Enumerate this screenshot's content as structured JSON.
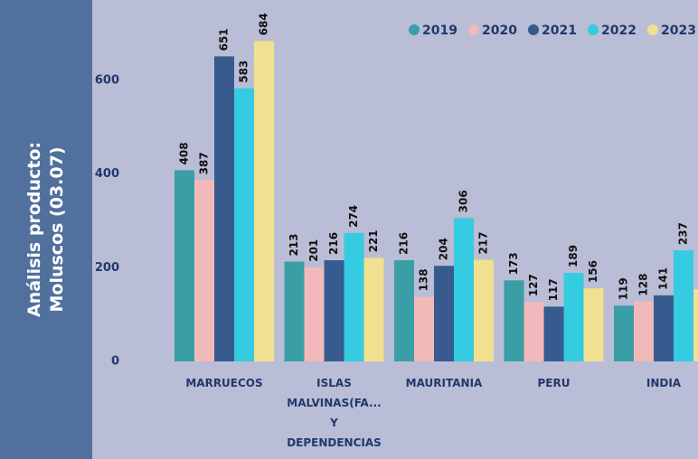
{
  "sidebar_title": "Análisis producto:\nMoluscos (03.07)",
  "chart_data": {
    "type": "bar",
    "categories": [
      "MARRUECOS",
      "ISLAS\nMALVINAS(FA...\nY\nDEPENDENCIAS",
      "MAURITANIA",
      "PERU",
      "INDIA"
    ],
    "series": [
      {
        "name": "2019",
        "color": "#3a9ea6",
        "values": [
          408,
          213,
          216,
          173,
          119
        ]
      },
      {
        "name": "2020",
        "color": "#f2b9bb",
        "values": [
          387,
          201,
          138,
          127,
          128
        ]
      },
      {
        "name": "2021",
        "color": "#375b8e",
        "values": [
          651,
          216,
          204,
          117,
          141
        ]
      },
      {
        "name": "2022",
        "color": "#35cbe0",
        "values": [
          583,
          274,
          306,
          189,
          237
        ]
      },
      {
        "name": "2023",
        "color": "#f1e08f",
        "values": [
          684,
          221,
          217,
          156,
          154
        ]
      }
    ],
    "ylim": [
      0,
      700
    ],
    "yticks": [
      0,
      200,
      400,
      600
    ],
    "grid": false,
    "legend": "top-right"
  }
}
